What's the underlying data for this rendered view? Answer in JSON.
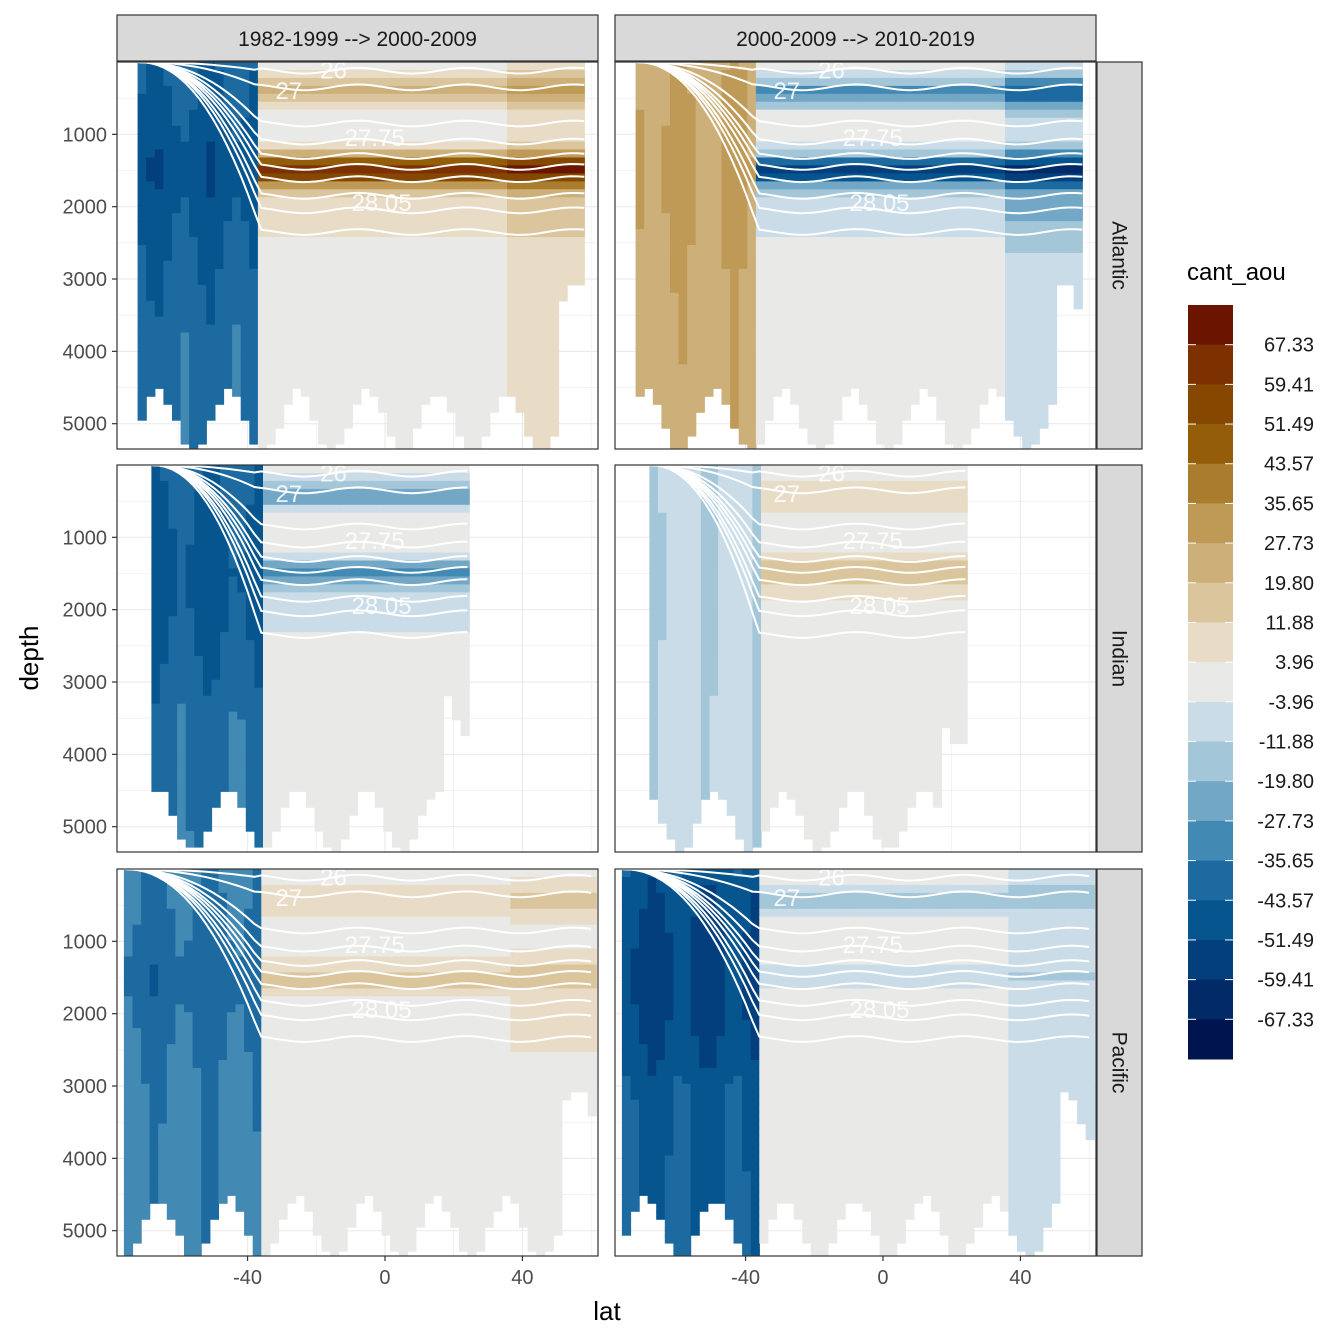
{
  "chart_data": {
    "type": "heatmap",
    "title": "",
    "xlabel": "lat",
    "ylabel": "depth",
    "xlim": [
      -78,
      62
    ],
    "ylim": [
      0,
      5350
    ],
    "x_ticks": [
      -40,
      0,
      40
    ],
    "y_ticks": [
      1000,
      2000,
      3000,
      4000,
      5000
    ],
    "columns": [
      "1982-1999 --> 2000-2009",
      "2000-2009 --> 2010-2019"
    ],
    "rows": [
      "Atlantic",
      "Indian",
      "Pacific"
    ],
    "legend": {
      "title": "cant_aou",
      "position": "right",
      "breaks": [
        "67.33",
        "59.41",
        "51.49",
        "43.57",
        "35.65",
        "27.73",
        "19.80",
        "11.88",
        "3.96",
        "-3.96",
        "-11.88",
        "-19.80",
        "-27.73",
        "-35.65",
        "-43.57",
        "-51.49",
        "-59.41",
        "-67.33"
      ],
      "colors": [
        "#6b1500",
        "#7d3000",
        "#864800",
        "#935d0a",
        "#a97c2e",
        "#bf9a57",
        "#ccaf79",
        "#dbc59d",
        "#e9dcc6",
        "#e9eae7",
        "#c9dce8",
        "#a3c6d9",
        "#73a7c6",
        "#4289b3",
        "#1d6aa0",
        "#07558f",
        "#033f7d",
        "#012a66",
        "#00154f"
      ]
    },
    "isopycnal_labels": [
      "26",
      "27",
      "27.75",
      "28.05"
    ],
    "isopycnal_depths": [
      120,
      350,
      850,
      1100,
      1300,
      1450,
      1620,
      1850,
      2050,
      2350
    ],
    "panels": [
      {
        "col": 0,
        "row": 0,
        "south_extent": -72,
        "north_extent": 58,
        "max_depth": 5350,
        "south_dcant": -46,
        "band_1500": 60,
        "band_400": 22
      },
      {
        "col": 1,
        "row": 0,
        "south_extent": -72,
        "north_extent": 58,
        "max_depth": 5350,
        "south_dcant": 28,
        "band_1500": -55,
        "band_400": -30
      },
      {
        "col": 0,
        "row": 1,
        "south_extent": -68,
        "north_extent": 24,
        "max_depth": 5300,
        "south_dcant": -45,
        "band_1500": -30,
        "band_400": -25
      },
      {
        "col": 1,
        "row": 1,
        "south_extent": -68,
        "north_extent": 24,
        "max_depth": 5300,
        "south_dcant": -10,
        "band_1500": 18,
        "band_400": 12
      },
      {
        "col": 0,
        "row": 2,
        "south_extent": -76,
        "north_extent": 60,
        "max_depth": 5350,
        "south_dcant": -38,
        "band_1500": 14,
        "band_400": 10
      },
      {
        "col": 1,
        "row": 2,
        "south_extent": -76,
        "north_extent": 60,
        "max_depth": 5350,
        "south_dcant": -52,
        "band_1500": -8,
        "band_400": -14
      }
    ]
  }
}
